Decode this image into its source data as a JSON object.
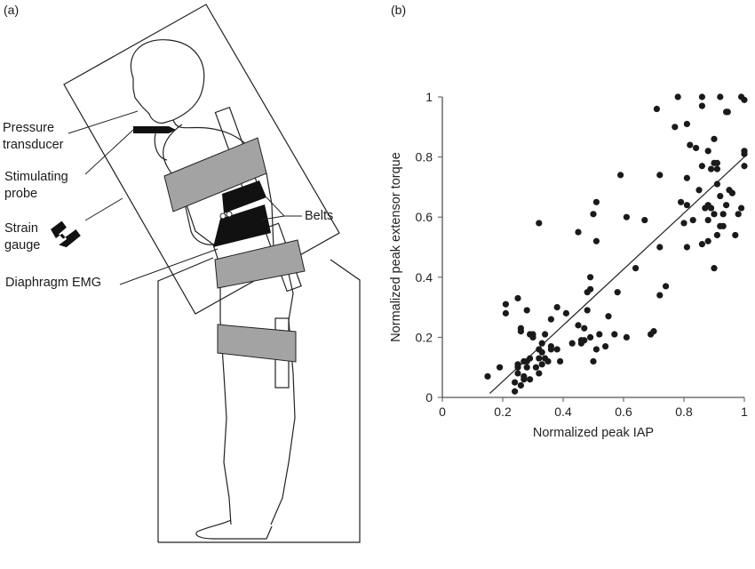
{
  "panel_a": {
    "label": "(a)",
    "labels": {
      "pressure": [
        "Pressure",
        "transducer"
      ],
      "probe": [
        "Stimulating",
        "probe"
      ],
      "strain": [
        "Strain",
        "gauge"
      ],
      "emg": "Diaphragm EMG",
      "belts": "Belts"
    },
    "colors": {
      "belt": "#a3a3a3",
      "band": "#111111",
      "line": "#222222"
    }
  },
  "panel_b": {
    "label": "(b)"
  },
  "chart_data": {
    "type": "scatter",
    "title": "",
    "xlabel": "Normalized peak IAP",
    "ylabel": "Normalized peak extensor torque",
    "xlim": [
      0,
      1
    ],
    "ylim": [
      0,
      1
    ],
    "xticks": [
      0,
      0.2,
      0.4,
      0.6,
      0.8,
      1
    ],
    "yticks": [
      0,
      0.2,
      0.4,
      0.6,
      0.8,
      1
    ],
    "xtick_labels": [
      "0",
      "0.2",
      "0.4",
      "0.6",
      "0.8",
      "1"
    ],
    "ytick_labels": [
      "0",
      "0.2",
      "0.4",
      "0.6",
      "0.8",
      "1"
    ],
    "grid": false,
    "regression_line": [
      [
        0.157,
        0.013
      ],
      [
        1.0,
        0.8
      ]
    ],
    "points": [
      [
        0.78,
        1.0
      ],
      [
        0.86,
        1.0
      ],
      [
        0.92,
        1.0
      ],
      [
        0.99,
        1.0
      ],
      [
        1.0,
        0.99
      ],
      [
        0.71,
        0.96
      ],
      [
        0.86,
        0.97
      ],
      [
        0.94,
        0.95
      ],
      [
        0.945,
        0.95
      ],
      [
        0.77,
        0.9
      ],
      [
        0.81,
        0.91
      ],
      [
        0.9,
        0.86
      ],
      [
        0.82,
        0.84
      ],
      [
        0.84,
        0.83
      ],
      [
        0.88,
        0.82
      ],
      [
        1.0,
        0.82
      ],
      [
        1.0,
        0.81
      ],
      [
        0.9,
        0.78
      ],
      [
        0.91,
        0.78
      ],
      [
        0.86,
        0.77
      ],
      [
        0.89,
        0.76
      ],
      [
        0.91,
        0.76
      ],
      [
        1.0,
        0.77
      ],
      [
        0.59,
        0.74
      ],
      [
        0.72,
        0.74
      ],
      [
        0.81,
        0.73
      ],
      [
        0.91,
        0.71
      ],
      [
        0.85,
        0.69
      ],
      [
        0.95,
        0.69
      ],
      [
        0.96,
        0.68
      ],
      [
        0.51,
        0.65
      ],
      [
        0.79,
        0.65
      ],
      [
        0.92,
        0.67
      ],
      [
        0.88,
        0.64
      ],
      [
        0.89,
        0.63
      ],
      [
        0.81,
        0.64
      ],
      [
        0.87,
        0.63
      ],
      [
        0.94,
        0.64
      ],
      [
        0.99,
        0.63
      ],
      [
        0.5,
        0.61
      ],
      [
        0.61,
        0.6
      ],
      [
        0.67,
        0.59
      ],
      [
        0.9,
        0.61
      ],
      [
        0.93,
        0.61
      ],
      [
        0.98,
        0.61
      ],
      [
        0.83,
        0.59
      ],
      [
        0.88,
        0.59
      ],
      [
        0.32,
        0.58
      ],
      [
        0.8,
        0.58
      ],
      [
        0.92,
        0.57
      ],
      [
        0.93,
        0.57
      ],
      [
        0.45,
        0.55
      ],
      [
        0.91,
        0.54
      ],
      [
        0.97,
        0.54
      ],
      [
        0.51,
        0.52
      ],
      [
        0.72,
        0.5
      ],
      [
        0.86,
        0.51
      ],
      [
        0.88,
        0.52
      ],
      [
        0.81,
        0.5
      ],
      [
        0.64,
        0.43
      ],
      [
        0.9,
        0.43
      ],
      [
        0.49,
        0.4
      ],
      [
        0.48,
        0.35
      ],
      [
        0.49,
        0.36
      ],
      [
        0.74,
        0.37
      ],
      [
        0.58,
        0.35
      ],
      [
        0.72,
        0.34
      ],
      [
        0.21,
        0.31
      ],
      [
        0.25,
        0.33
      ],
      [
        0.21,
        0.28
      ],
      [
        0.28,
        0.29
      ],
      [
        0.38,
        0.3
      ],
      [
        0.41,
        0.28
      ],
      [
        0.48,
        0.29
      ],
      [
        0.36,
        0.26
      ],
      [
        0.55,
        0.27
      ],
      [
        0.45,
        0.24
      ],
      [
        0.47,
        0.23
      ],
      [
        0.26,
        0.23
      ],
      [
        0.26,
        0.22
      ],
      [
        0.29,
        0.21
      ],
      [
        0.3,
        0.21
      ],
      [
        0.3,
        0.2
      ],
      [
        0.34,
        0.21
      ],
      [
        0.52,
        0.21
      ],
      [
        0.57,
        0.21
      ],
      [
        0.61,
        0.2
      ],
      [
        0.49,
        0.2
      ],
      [
        0.69,
        0.21
      ],
      [
        0.7,
        0.22
      ],
      [
        0.33,
        0.18
      ],
      [
        0.43,
        0.18
      ],
      [
        0.46,
        0.19
      ],
      [
        0.47,
        0.19
      ],
      [
        0.46,
        0.18
      ],
      [
        0.36,
        0.17
      ],
      [
        0.36,
        0.16
      ],
      [
        0.38,
        0.16
      ],
      [
        0.32,
        0.16
      ],
      [
        0.33,
        0.15
      ],
      [
        0.51,
        0.16
      ],
      [
        0.54,
        0.17
      ],
      [
        0.29,
        0.13
      ],
      [
        0.34,
        0.13
      ],
      [
        0.32,
        0.13
      ],
      [
        0.33,
        0.11
      ],
      [
        0.35,
        0.12
      ],
      [
        0.39,
        0.12
      ],
      [
        0.5,
        0.12
      ],
      [
        0.27,
        0.12
      ],
      [
        0.28,
        0.12
      ],
      [
        0.25,
        0.11
      ],
      [
        0.19,
        0.1
      ],
      [
        0.25,
        0.1
      ],
      [
        0.28,
        0.1
      ],
      [
        0.31,
        0.1
      ],
      [
        0.25,
        0.08
      ],
      [
        0.32,
        0.08
      ],
      [
        0.27,
        0.07
      ],
      [
        0.29,
        0.06
      ],
      [
        0.27,
        0.06
      ],
      [
        0.15,
        0.07
      ],
      [
        0.24,
        0.05
      ],
      [
        0.26,
        0.04
      ],
      [
        0.24,
        0.02
      ]
    ],
    "marker_color": "#1a1a1a"
  }
}
